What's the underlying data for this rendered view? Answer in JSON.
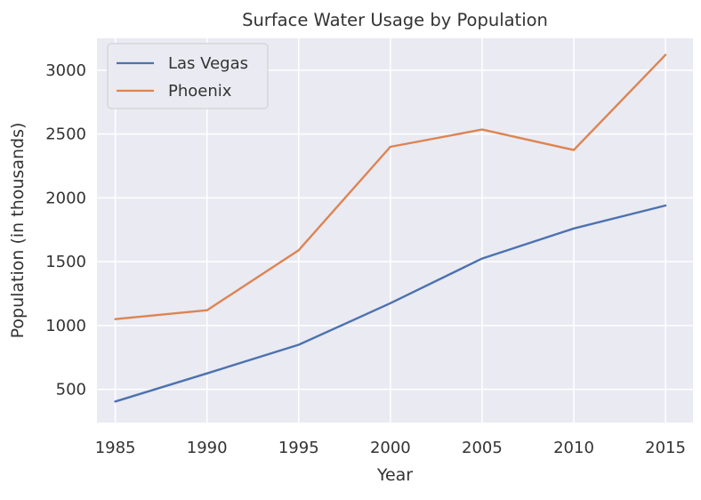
{
  "chart_data": {
    "type": "line",
    "title": "Surface Water Usage by Population",
    "xlabel": "Year",
    "ylabel": "Population (in thousands)",
    "x": [
      1985,
      1990,
      1995,
      2000,
      2005,
      2010,
      2015
    ],
    "xlim": [
      1984,
      2016.5
    ],
    "ylim": [
      240,
      3250
    ],
    "yticks": [
      500,
      1000,
      1500,
      2000,
      2500,
      3000
    ],
    "grid": true,
    "legend": "top-left",
    "series": [
      {
        "name": "Las Vegas",
        "color": "#4c72b0",
        "values": [
          405,
          625,
          850,
          1175,
          1525,
          1760,
          1940
        ]
      },
      {
        "name": "Phoenix",
        "color": "#dd8452",
        "values": [
          1050,
          1120,
          1590,
          2400,
          2535,
          2375,
          3120
        ]
      }
    ],
    "style": {
      "plot_background": "#eaeaf2",
      "grid_color": "#ffffff"
    }
  }
}
